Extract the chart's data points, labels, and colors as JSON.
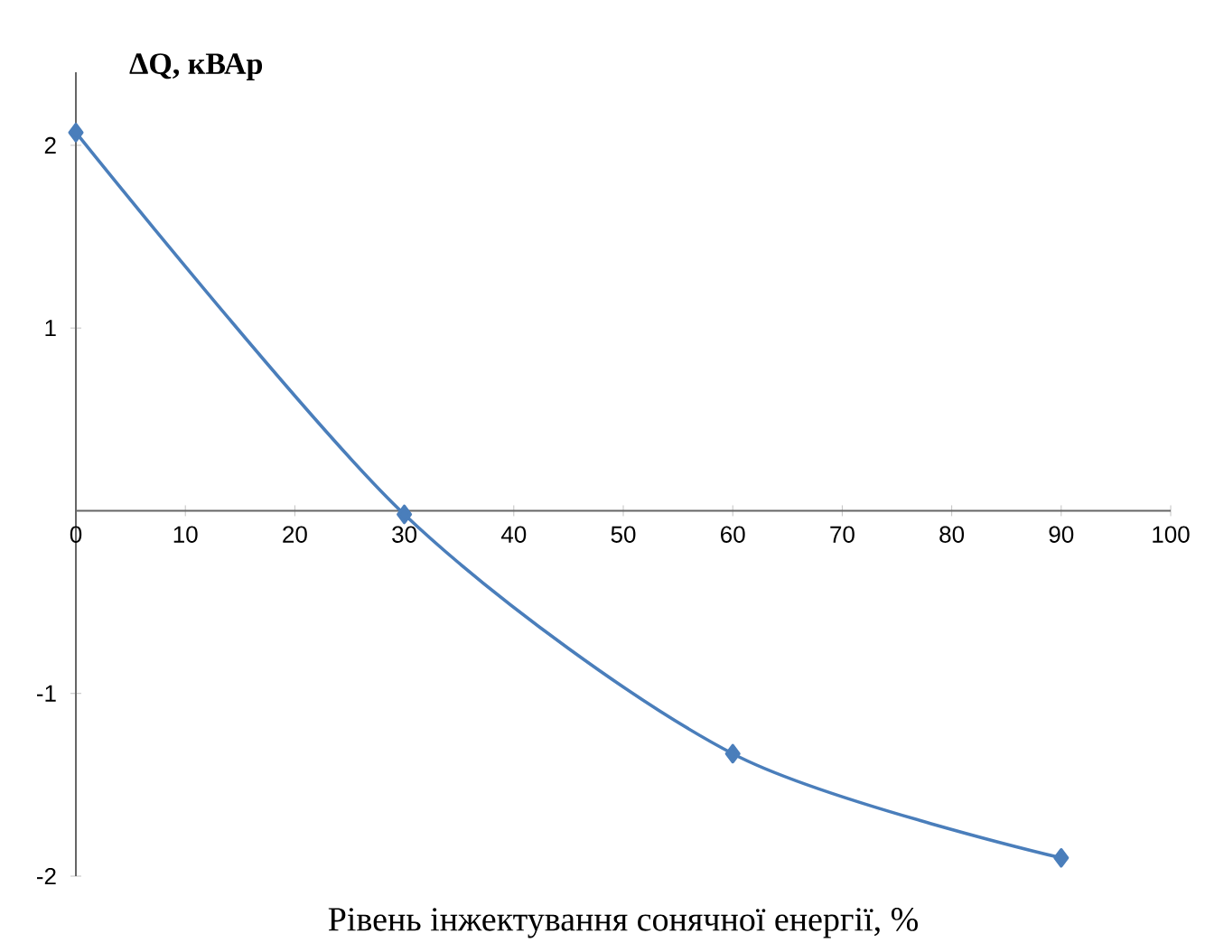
{
  "chart_data": {
    "type": "line",
    "xlabel": "Рівень інжектування сонячної енергії, %",
    "ylabel": "ΔQ, кВАр",
    "x": [
      0,
      30,
      60,
      90
    ],
    "series": [
      {
        "color": "#4a7ebb",
        "values": [
          2.07,
          -0.02,
          -1.33,
          -1.9
        ]
      }
    ],
    "xlim": [
      0,
      100
    ],
    "xticks": [
      0,
      10,
      20,
      30,
      40,
      50,
      60,
      70,
      80,
      90,
      100
    ],
    "ylim": [
      -2,
      2.4
    ],
    "yticks": [
      -2,
      -1,
      1,
      2
    ],
    "marker": "diamond",
    "line_style": "solid",
    "grid": false
  }
}
